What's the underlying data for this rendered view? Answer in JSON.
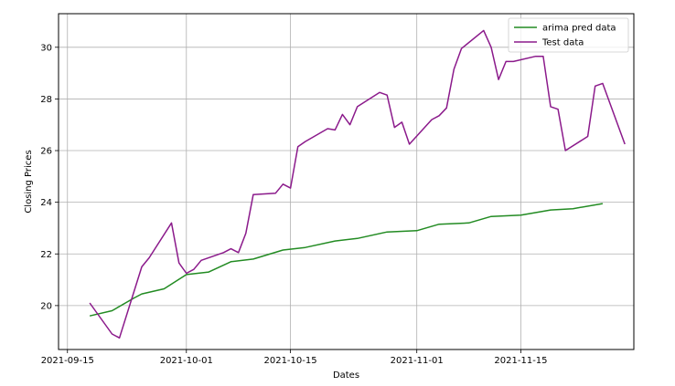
{
  "chart_data": {
    "type": "line",
    "title": "",
    "xlabel": "Dates",
    "ylabel": "Closing Prices",
    "xlim": [
      "2021-09-15",
      "2021-11-30"
    ],
    "ylim": [
      18.3,
      31.3
    ],
    "x_ticks": [
      "2021-09-15",
      "2021-10-01",
      "2021-10-15",
      "2021-11-01",
      "2021-11-15"
    ],
    "y_ticks": [
      20,
      22,
      24,
      26,
      28,
      30
    ],
    "grid": true,
    "legend_position": "top-right",
    "series": [
      {
        "name": "arima pred data",
        "color": "#228B22",
        "points": [
          [
            "2021-09-18",
            19.6
          ],
          [
            "2021-09-21",
            19.8
          ],
          [
            "2021-09-24",
            20.3
          ],
          [
            "2021-09-25",
            20.45
          ],
          [
            "2021-09-28",
            20.65
          ],
          [
            "2021-10-01",
            21.2
          ],
          [
            "2021-10-04",
            21.3
          ],
          [
            "2021-10-07",
            21.7
          ],
          [
            "2021-10-10",
            21.8
          ],
          [
            "2021-10-14",
            22.15
          ],
          [
            "2021-10-17",
            22.25
          ],
          [
            "2021-10-21",
            22.5
          ],
          [
            "2021-10-24",
            22.6
          ],
          [
            "2021-10-28",
            22.85
          ],
          [
            "2021-11-01",
            22.9
          ],
          [
            "2021-11-04",
            23.15
          ],
          [
            "2021-11-08",
            23.2
          ],
          [
            "2021-11-11",
            23.45
          ],
          [
            "2021-11-15",
            23.5
          ],
          [
            "2021-11-19",
            23.7
          ],
          [
            "2021-11-22",
            23.75
          ],
          [
            "2021-11-26",
            23.95
          ]
        ]
      },
      {
        "name": "Test data",
        "color": "#8B1A8B",
        "points": [
          [
            "2021-09-18",
            20.1
          ],
          [
            "2021-09-21",
            18.9
          ],
          [
            "2021-09-22",
            18.75
          ],
          [
            "2021-09-25",
            21.5
          ],
          [
            "2021-09-26",
            21.85
          ],
          [
            "2021-09-29",
            23.2
          ],
          [
            "2021-09-30",
            21.65
          ],
          [
            "2021-10-01",
            21.25
          ],
          [
            "2021-10-02",
            21.4
          ],
          [
            "2021-10-03",
            21.75
          ],
          [
            "2021-10-06",
            22.05
          ],
          [
            "2021-10-07",
            22.2
          ],
          [
            "2021-10-08",
            22.05
          ],
          [
            "2021-10-09",
            22.8
          ],
          [
            "2021-10-10",
            24.3
          ],
          [
            "2021-10-13",
            24.35
          ],
          [
            "2021-10-14",
            24.7
          ],
          [
            "2021-10-15",
            24.55
          ],
          [
            "2021-10-16",
            26.15
          ],
          [
            "2021-10-17",
            26.35
          ],
          [
            "2021-10-20",
            26.85
          ],
          [
            "2021-10-21",
            26.8
          ],
          [
            "2021-10-22",
            27.4
          ],
          [
            "2021-10-23",
            27.0
          ],
          [
            "2021-10-24",
            27.7
          ],
          [
            "2021-10-27",
            28.25
          ],
          [
            "2021-10-28",
            28.15
          ],
          [
            "2021-10-29",
            26.9
          ],
          [
            "2021-10-30",
            27.1
          ],
          [
            "2021-10-31",
            26.25
          ],
          [
            "2021-11-03",
            27.2
          ],
          [
            "2021-11-04",
            27.35
          ],
          [
            "2021-11-05",
            27.65
          ],
          [
            "2021-11-06",
            29.15
          ],
          [
            "2021-11-07",
            29.95
          ],
          [
            "2021-11-10",
            30.65
          ],
          [
            "2021-11-11",
            30.0
          ],
          [
            "2021-11-12",
            28.75
          ],
          [
            "2021-11-13",
            29.45
          ],
          [
            "2021-11-14",
            29.45
          ],
          [
            "2021-11-17",
            29.65
          ],
          [
            "2021-11-18",
            29.65
          ],
          [
            "2021-11-19",
            27.7
          ],
          [
            "2021-11-20",
            27.6
          ],
          [
            "2021-11-21",
            26.0
          ],
          [
            "2021-11-24",
            26.55
          ],
          [
            "2021-11-25",
            28.5
          ],
          [
            "2021-11-26",
            28.6
          ],
          [
            "2021-11-29",
            26.25
          ]
        ]
      }
    ]
  }
}
